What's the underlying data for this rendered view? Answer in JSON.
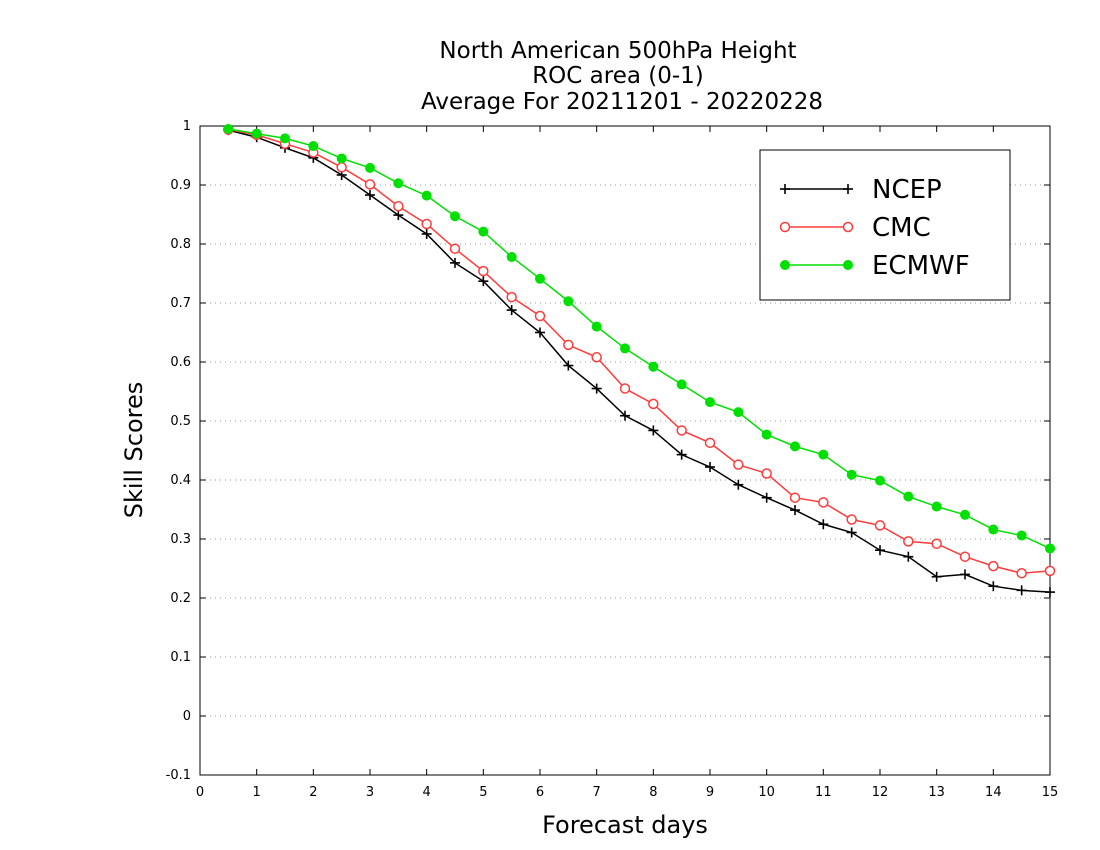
{
  "chart_data": {
    "type": "line",
    "title_lines": [
      "North American 500hPa Height",
      "ROC area (0-1)",
      "Average For 20211201 - 20220228"
    ],
    "xlabel": "Forecast days",
    "ylabel": "Skill Scores",
    "xlim": [
      0,
      15
    ],
    "ylim": [
      -0.1,
      1
    ],
    "x_ticks": [
      0,
      1,
      2,
      3,
      4,
      5,
      6,
      7,
      8,
      9,
      10,
      11,
      12,
      13,
      14,
      15
    ],
    "y_ticks": [
      -0.1,
      0,
      0.1,
      0.2,
      0.3,
      0.4,
      0.5,
      0.6,
      0.7,
      0.8,
      0.9,
      1
    ],
    "y_tick_labels": [
      "-0.1",
      "0",
      "0.1",
      "0.2",
      "0.3",
      "0.4",
      "0.5",
      "0.6",
      "0.7",
      "0.8",
      "0.9",
      "1"
    ],
    "grid": "horizontal dotted",
    "legend_position": "top-right",
    "x": [
      0.5,
      1,
      1.5,
      2,
      2.5,
      3,
      3.5,
      4,
      4.5,
      5,
      5.5,
      6,
      6.5,
      7,
      7.5,
      8,
      8.5,
      9,
      9.5,
      10,
      10.5,
      11,
      11.5,
      12,
      12.5,
      13,
      13.5,
      14,
      14.5,
      15
    ],
    "series": [
      {
        "name": "NCEP",
        "color": "#000000",
        "marker": "plus",
        "values": [
          0.993,
          0.981,
          0.963,
          0.946,
          0.917,
          0.883,
          0.849,
          0.817,
          0.768,
          0.737,
          0.688,
          0.65,
          0.594,
          0.555,
          0.509,
          0.484,
          0.443,
          0.422,
          0.392,
          0.37,
          0.349,
          0.325,
          0.311,
          0.281,
          0.27,
          0.236,
          0.24,
          0.22,
          0.213,
          0.21
        ]
      },
      {
        "name": "CMC",
        "color": "#ff3b3b",
        "marker": "open-circle",
        "values": [
          0.994,
          0.985,
          0.97,
          0.955,
          0.93,
          0.901,
          0.864,
          0.834,
          0.792,
          0.754,
          0.71,
          0.678,
          0.629,
          0.608,
          0.555,
          0.529,
          0.484,
          0.463,
          0.426,
          0.411,
          0.37,
          0.362,
          0.333,
          0.323,
          0.296,
          0.292,
          0.27,
          0.254,
          0.242,
          0.246
        ]
      },
      {
        "name": "ECMWF",
        "color": "#00e000",
        "marker": "filled-circle",
        "values": [
          0.995,
          0.987,
          0.979,
          0.966,
          0.945,
          0.929,
          0.903,
          0.882,
          0.847,
          0.821,
          0.778,
          0.741,
          0.703,
          0.66,
          0.623,
          0.592,
          0.562,
          0.532,
          0.515,
          0.477,
          0.457,
          0.443,
          0.409,
          0.399,
          0.372,
          0.355,
          0.341,
          0.316,
          0.306,
          0.284
        ]
      }
    ]
  }
}
